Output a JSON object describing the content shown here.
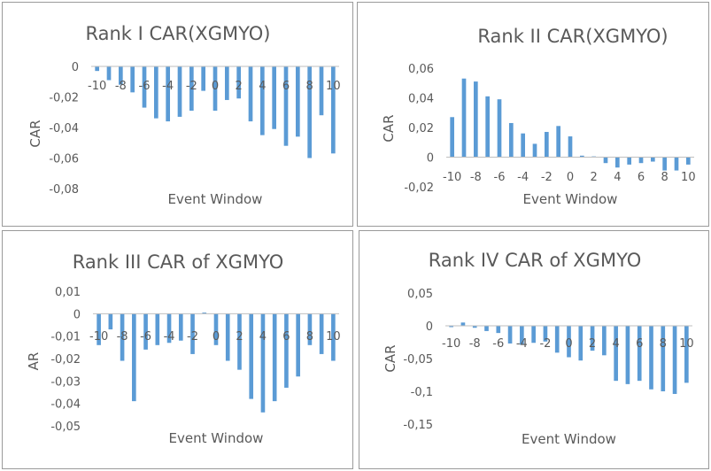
{
  "colors": {
    "bar": "#5b9bd5",
    "axis": "#bfbfbf",
    "text": "#595959"
  },
  "chart_data": [
    {
      "type": "bar",
      "title": "Rank I CAR(XGMYO)",
      "xlabel": "Event Window",
      "ylabel": "CAR",
      "x": [
        -10,
        -9,
        -8,
        -7,
        -6,
        -5,
        -4,
        -3,
        -2,
        -1,
        0,
        1,
        2,
        3,
        4,
        5,
        6,
        7,
        8,
        9,
        10
      ],
      "values": [
        -0.003,
        -0.009,
        -0.012,
        -0.017,
        -0.027,
        -0.034,
        -0.036,
        -0.033,
        -0.029,
        -0.016,
        -0.029,
        -0.022,
        -0.021,
        -0.036,
        -0.045,
        -0.041,
        -0.052,
        -0.046,
        -0.06,
        -0.032,
        -0.057
      ],
      "ylim": [
        -0.08,
        0
      ],
      "yticks": [
        0,
        -0.02,
        -0.04,
        -0.06,
        -0.08
      ],
      "ytick_labels": [
        "0",
        "-0,02",
        "-0,04",
        "-0,06",
        "-0,08"
      ],
      "xtick_labels": [
        "-10",
        "-8",
        "-6",
        "-4",
        "-2",
        "0",
        "2",
        "4",
        "6",
        "8",
        "10"
      ]
    },
    {
      "type": "bar",
      "title": "Rank II CAR(XGMYO)",
      "xlabel": "Event Window",
      "ylabel": "CAR",
      "x": [
        -10,
        -9,
        -8,
        -7,
        -6,
        -5,
        -4,
        -3,
        -2,
        -1,
        0,
        1,
        2,
        3,
        4,
        5,
        6,
        7,
        8,
        9,
        10
      ],
      "values": [
        0.027,
        0.053,
        0.051,
        0.041,
        0.039,
        0.023,
        0.016,
        0.009,
        0.017,
        0.021,
        0.014,
        0.001,
        0.0005,
        -0.004,
        -0.007,
        -0.005,
        -0.004,
        -0.003,
        -0.009,
        -0.009,
        -0.005
      ],
      "ylim": [
        -0.02,
        0.06
      ],
      "yticks": [
        0.06,
        0.04,
        0.02,
        0,
        -0.02
      ],
      "ytick_labels": [
        "0,06",
        "0,04",
        "0,02",
        "0",
        "-0,02"
      ],
      "xtick_labels": [
        "-10",
        "-8",
        "-6",
        "-4",
        "-2",
        "0",
        "2",
        "4",
        "6",
        "8",
        "10"
      ]
    },
    {
      "type": "bar",
      "title": "Rank III CAR of XGMYO",
      "xlabel": "Event Window",
      "ylabel": "AR",
      "x": [
        -10,
        -9,
        -8,
        -7,
        -6,
        -5,
        -4,
        -3,
        -2,
        -1,
        0,
        1,
        2,
        3,
        4,
        5,
        6,
        7,
        8,
        9,
        10
      ],
      "values": [
        -0.014,
        -0.007,
        -0.021,
        -0.039,
        -0.016,
        -0.014,
        -0.013,
        -0.012,
        -0.018,
        0.0005,
        -0.014,
        -0.021,
        -0.025,
        -0.038,
        -0.044,
        -0.039,
        -0.033,
        -0.028,
        -0.014,
        -0.018,
        -0.021
      ],
      "ylim": [
        -0.05,
        0.01
      ],
      "yticks": [
        0.01,
        0,
        -0.01,
        -0.02,
        -0.03,
        -0.04,
        -0.05
      ],
      "ytick_labels": [
        "0,01",
        "0",
        "-0,01",
        "-0,02",
        "-0,03",
        "-0,04",
        "-0,05"
      ],
      "xtick_labels": [
        "-10",
        "-8",
        "-6",
        "-4",
        "-2",
        "0",
        "2",
        "4",
        "6",
        "8",
        "10"
      ]
    },
    {
      "type": "bar",
      "title": "Rank IV CAR of XGMYO",
      "xlabel": "Event Window",
      "ylabel": "CAR",
      "x": [
        -10,
        -9,
        -8,
        -7,
        -6,
        -5,
        -4,
        -3,
        -2,
        -1,
        0,
        1,
        2,
        3,
        4,
        5,
        6,
        7,
        8,
        9,
        10
      ],
      "values": [
        -0.002,
        0.005,
        -0.003,
        -0.008,
        -0.011,
        -0.027,
        -0.029,
        -0.026,
        -0.024,
        -0.041,
        -0.048,
        -0.053,
        -0.038,
        -0.045,
        -0.084,
        -0.089,
        -0.084,
        -0.097,
        -0.1,
        -0.104,
        -0.087
      ],
      "ylim": [
        -0.15,
        0.05
      ],
      "yticks": [
        0.05,
        0,
        -0.05,
        -0.1,
        -0.15
      ],
      "ytick_labels": [
        "0,05",
        "0",
        "-0,05",
        "-0,1",
        "-0,15"
      ],
      "xtick_labels": [
        "-10",
        "-8",
        "-6",
        "-4",
        "-2",
        "0",
        "2",
        "4",
        "6",
        "8",
        "10"
      ]
    }
  ]
}
